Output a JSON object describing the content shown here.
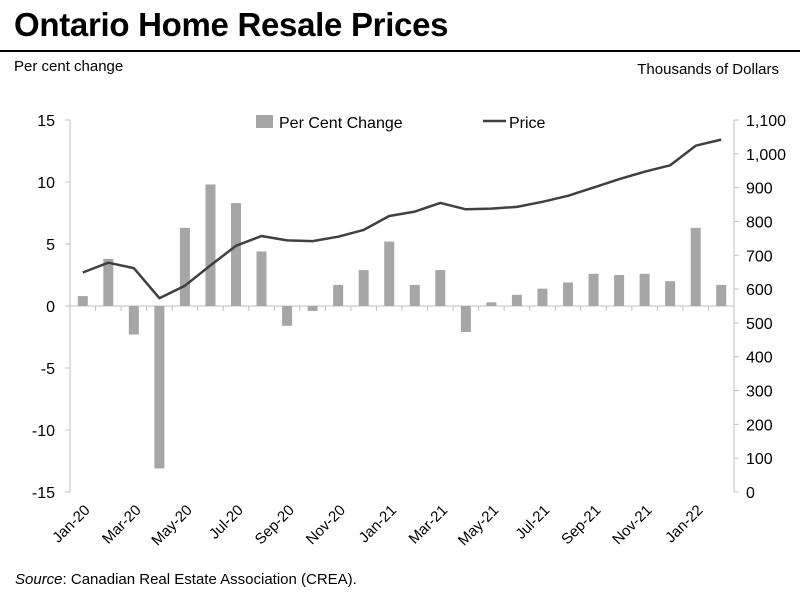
{
  "header": {
    "title": "Ontario Home Resale Prices",
    "left_axis_title": "Per cent change",
    "right_axis_title": "Thousands  of Dollars"
  },
  "source": {
    "label": "Source",
    "text": ": Canadian Real Estate Association (CREA)."
  },
  "colors": {
    "bar": "#a6a6a6",
    "line": "#404040",
    "axis": "#bfbfbf"
  },
  "chart_data": {
    "type": "bar",
    "categories": [
      "Jan-20",
      "Feb-20",
      "Mar-20",
      "Apr-20",
      "May-20",
      "Jun-20",
      "Jul-20",
      "Aug-20",
      "Sep-20",
      "Oct-20",
      "Nov-20",
      "Dec-20",
      "Jan-21",
      "Feb-21",
      "Mar-21",
      "Apr-21",
      "May-21",
      "Jun-21",
      "Jul-21",
      "Aug-21",
      "Sep-21",
      "Oct-21",
      "Nov-21",
      "Dec-21",
      "Jan-22",
      "Feb-22"
    ],
    "x_tick_labels": [
      "Jan-20",
      "Mar-20",
      "May-20",
      "Jul-20",
      "Sep-20",
      "Nov-20",
      "Jan-21",
      "Mar-21",
      "May-21",
      "Jul-21",
      "Sep-21",
      "Nov-21",
      "Jan-22"
    ],
    "series": [
      {
        "name": "Per Cent Change",
        "type": "bar",
        "axis": "left",
        "values": [
          0.8,
          3.8,
          -2.3,
          -13.1,
          6.3,
          9.8,
          8.3,
          4.4,
          -1.6,
          -0.4,
          1.7,
          2.9,
          5.2,
          1.7,
          2.9,
          -2.1,
          0.3,
          0.9,
          1.4,
          1.9,
          2.6,
          2.5,
          2.6,
          2.0,
          6.3,
          1.7
        ]
      },
      {
        "name": "Price",
        "type": "line",
        "axis": "right",
        "values": [
          649,
          678,
          662,
          573,
          610,
          670,
          728,
          757,
          744,
          742,
          755,
          775,
          816,
          829,
          855,
          836,
          838,
          843,
          858,
          876,
          900,
          925,
          947,
          966,
          1024,
          1042
        ]
      }
    ],
    "left_axis": {
      "min": -15,
      "max": 15,
      "ticks": [
        15,
        10,
        5,
        0,
        -5,
        -10,
        -15
      ]
    },
    "right_axis": {
      "min": 0,
      "max": 1100,
      "ticks": [
        1100,
        1000,
        900,
        800,
        700,
        600,
        500,
        400,
        300,
        200,
        100,
        0
      ],
      "tick_labels": [
        "1,100",
        "1,000",
        "900",
        "800",
        "700",
        "600",
        "500",
        "400",
        "300",
        "200",
        "100",
        "0"
      ]
    },
    "grid": false,
    "legend_position": "top-center"
  }
}
